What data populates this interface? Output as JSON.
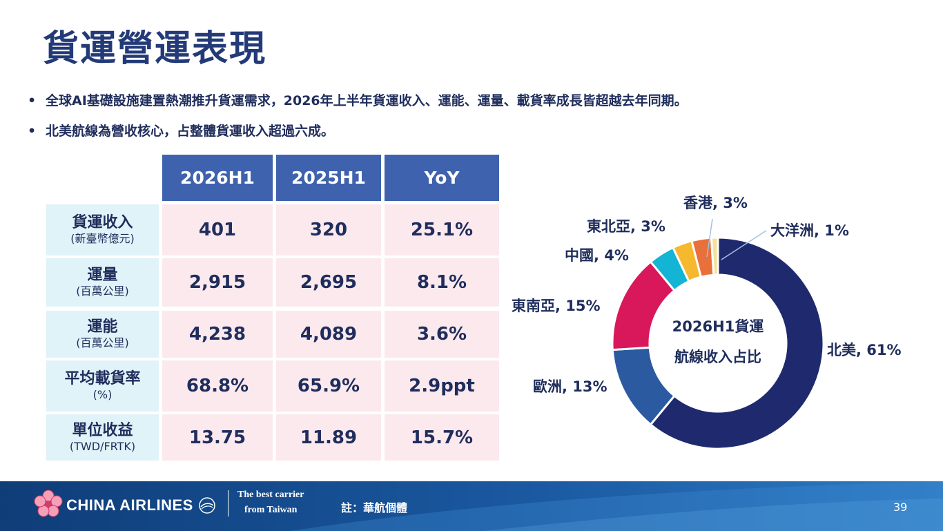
{
  "title": "貨運營運表現",
  "bullets": [
    "全球AI基礎設施建置熱潮推升貨運需求，2026年上半年貨運收入、運能、運量、載貨率成長皆超越去年同期。",
    "北美航線為營收核心，占整體貨運收入超過六成。"
  ],
  "table": {
    "headers": [
      "2026H1",
      "2025H1",
      "YoY"
    ],
    "rows": [
      {
        "label": "貨運收入",
        "sub": "(新臺幣億元)",
        "values": [
          "401",
          "320",
          "25.1%"
        ]
      },
      {
        "label": "運量",
        "sub": "(百萬公里)",
        "values": [
          "2,915",
          "2,695",
          "8.1%"
        ]
      },
      {
        "label": "運能",
        "sub": "(百萬公里)",
        "values": [
          "4,238",
          "4,089",
          "3.6%"
        ]
      },
      {
        "label": "平均載貨率",
        "sub": "(%)",
        "values": [
          "68.8%",
          "65.9%",
          "2.9ppt"
        ]
      },
      {
        "label": "單位收益",
        "sub": "(TWD/FRTK)",
        "values": [
          "13.75",
          "11.89",
          "15.7%"
        ]
      }
    ]
  },
  "chart_data": {
    "type": "pie",
    "title": "2026H1貨運航線收入占比",
    "title_lines": [
      "2026H1貨運",
      "航線收入占比"
    ],
    "categories": [
      "北美",
      "歐洲",
      "東南亞",
      "中國",
      "東北亞",
      "香港",
      "大洋洲"
    ],
    "values": [
      61,
      13,
      15,
      4,
      3,
      3,
      1
    ],
    "labels": [
      "北美, 61%",
      "歐洲, 13%",
      "東南亞, 15%",
      "中國, 4%",
      "東北亞, 3%",
      "香港, 3%",
      "大洋洲, 1%"
    ],
    "colors": [
      "#1f2a6e",
      "#2b5aa0",
      "#d8185a",
      "#13b4d4",
      "#f5b82e",
      "#e8703a",
      "#f4e29a"
    ]
  },
  "footer": {
    "brand": "CHINA AIRLINES",
    "tagline_1": "The best carrier",
    "tagline_2": "from Taiwan",
    "note": "註：華航個體",
    "page": "39"
  }
}
